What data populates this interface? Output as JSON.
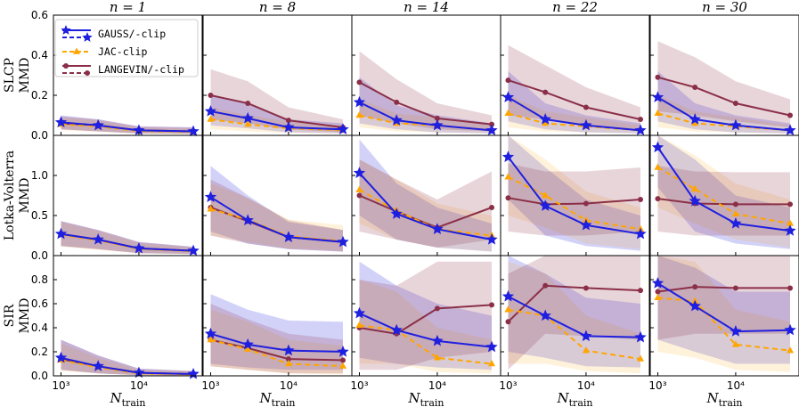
{
  "chart_data": {
    "type": "line",
    "xscale": "log",
    "x": [
      1000,
      3000,
      10000,
      50000
    ],
    "xticks": [
      1000,
      10000
    ],
    "xtick_labels": [
      "10³",
      "10⁴"
    ],
    "xlabel_main": "N",
    "xlabel_sub": "train",
    "columns": [
      {
        "label": "n = 1"
      },
      {
        "label": "n = 8"
      },
      {
        "label": "n = 14"
      },
      {
        "label": "n = 22"
      },
      {
        "label": "n = 30"
      }
    ],
    "rows": [
      {
        "label1": "SLCP",
        "label2": "MMD",
        "ylim": [
          0,
          0.6
        ],
        "yticks": [
          "0.0",
          "0.2",
          "0.4",
          "0.6"
        ],
        "ytick_values": [
          0,
          0.2,
          0.4,
          0.6
        ]
      },
      {
        "label1": "Lotka-Volterra",
        "label2": "MMD",
        "ylim": [
          0,
          1.5
        ],
        "yticks": [
          "0.0",
          "0.5",
          "1.0"
        ],
        "ytick_values": [
          0,
          0.5,
          1.0
        ]
      },
      {
        "label1": "SIR",
        "label2": "MMD",
        "ylim": [
          0,
          1.0
        ],
        "yticks": [
          "0.0",
          "0.2",
          "0.4",
          "0.6",
          "0.8"
        ],
        "ytick_values": [
          0,
          0.2,
          0.4,
          0.6,
          0.8
        ]
      }
    ],
    "legend": {
      "placement": "top-left of first panel",
      "entries": [
        {
          "name": "GAUSS/-clip",
          "color": "#1f1fe0",
          "marker": "star"
        },
        {
          "name": "JAC-clip",
          "color": "#ffa500",
          "marker": "triangle"
        },
        {
          "name": "LANGEVIN/-clip",
          "color": "#8b2f48",
          "marker": "circle"
        }
      ]
    },
    "series_colors": {
      "gauss": "#1f1fe0",
      "jac": "#ffa500",
      "lang": "#8b2f48"
    },
    "panels": [
      [
        {
          "gauss": {
            "values": [
              0.065,
              0.05,
              0.025,
              0.02
            ],
            "lo": [
              0.03,
              0.02,
              0.01,
              0.008
            ],
            "hi": [
              0.1,
              0.08,
              0.045,
              0.04
            ]
          },
          "jac": {
            "values": [
              0.055,
              0.045,
              0.022,
              0.018
            ],
            "lo": [
              0.025,
              0.018,
              0.008,
              0.006
            ],
            "hi": [
              0.09,
              0.075,
              0.04,
              0.035
            ]
          },
          "lang": {
            "values": [
              0.06,
              0.05,
              0.025,
              0.02
            ],
            "lo": [
              0.03,
              0.02,
              0.01,
              0.008
            ],
            "hi": [
              0.095,
              0.08,
              0.045,
              0.04
            ]
          }
        },
        {
          "gauss": {
            "values": [
              0.12,
              0.085,
              0.04,
              0.03
            ],
            "lo": [
              0.05,
              0.035,
              0.015,
              0.01
            ],
            "hi": [
              0.2,
              0.16,
              0.08,
              0.06
            ]
          },
          "jac": {
            "values": [
              0.08,
              0.055,
              0.035,
              0.025
            ],
            "lo": [
              0.03,
              0.02,
              0.012,
              0.01
            ],
            "hi": [
              0.14,
              0.1,
              0.07,
              0.05
            ]
          },
          "lang": {
            "values": [
              0.2,
              0.16,
              0.075,
              0.04
            ],
            "lo": [
              0.08,
              0.06,
              0.03,
              0.015
            ],
            "hi": [
              0.33,
              0.27,
              0.14,
              0.08
            ]
          }
        },
        {
          "gauss": {
            "values": [
              0.165,
              0.075,
              0.05,
              0.025
            ],
            "lo": [
              0.06,
              0.03,
              0.015,
              0.01
            ],
            "hi": [
              0.29,
              0.15,
              0.1,
              0.06
            ]
          },
          "jac": {
            "values": [
              0.1,
              0.06,
              0.05,
              0.025
            ],
            "lo": [
              0.04,
              0.02,
              0.015,
              0.01
            ],
            "hi": [
              0.18,
              0.11,
              0.09,
              0.05
            ]
          },
          "lang": {
            "values": [
              0.265,
              0.165,
              0.085,
              0.055
            ],
            "lo": [
              0.1,
              0.06,
              0.03,
              0.02
            ],
            "hi": [
              0.42,
              0.28,
              0.16,
              0.1
            ]
          }
        },
        {
          "gauss": {
            "values": [
              0.19,
              0.08,
              0.05,
              0.025
            ],
            "lo": [
              0.07,
              0.03,
              0.015,
              0.01
            ],
            "hi": [
              0.32,
              0.16,
              0.1,
              0.06
            ]
          },
          "jac": {
            "values": [
              0.11,
              0.06,
              0.045,
              0.025
            ],
            "lo": [
              0.04,
              0.02,
              0.015,
              0.01
            ],
            "hi": [
              0.2,
              0.12,
              0.09,
              0.05
            ]
          },
          "lang": {
            "values": [
              0.275,
              0.215,
              0.14,
              0.08
            ],
            "lo": [
              0.1,
              0.08,
              0.05,
              0.03
            ],
            "hi": [
              0.45,
              0.35,
              0.24,
              0.14
            ]
          }
        },
        {
          "gauss": {
            "values": [
              0.19,
              0.08,
              0.05,
              0.025
            ],
            "lo": [
              0.07,
              0.03,
              0.015,
              0.01
            ],
            "hi": [
              0.32,
              0.16,
              0.1,
              0.06
            ]
          },
          "jac": {
            "values": [
              0.11,
              0.06,
              0.045,
              0.025
            ],
            "lo": [
              0.04,
              0.02,
              0.015,
              0.01
            ],
            "hi": [
              0.2,
              0.12,
              0.09,
              0.05
            ]
          },
          "lang": {
            "values": [
              0.29,
              0.24,
              0.16,
              0.1
            ],
            "lo": [
              0.12,
              0.1,
              0.07,
              0.04
            ],
            "hi": [
              0.47,
              0.39,
              0.27,
              0.18
            ]
          }
        }
      ],
      [
        {
          "gauss": {
            "values": [
              0.27,
              0.2,
              0.09,
              0.06
            ],
            "lo": [
              0.12,
              0.08,
              0.03,
              0.02
            ],
            "hi": [
              0.43,
              0.32,
              0.17,
              0.11
            ]
          },
          "jac": {
            "values": [
              0.26,
              0.19,
              0.085,
              0.055
            ],
            "lo": [
              0.11,
              0.07,
              0.03,
              0.02
            ],
            "hi": [
              0.42,
              0.31,
              0.16,
              0.1
            ]
          },
          "lang": {
            "values": [
              0.27,
              0.2,
              0.09,
              0.06
            ],
            "lo": [
              0.12,
              0.08,
              0.03,
              0.02
            ],
            "hi": [
              0.43,
              0.32,
              0.17,
              0.11
            ]
          }
        },
        {
          "gauss": {
            "values": [
              0.73,
              0.44,
              0.23,
              0.17
            ],
            "lo": [
              0.3,
              0.15,
              0.08,
              0.05
            ],
            "hi": [
              1.12,
              0.75,
              0.42,
              0.32
            ]
          },
          "jac": {
            "values": [
              0.58,
              0.45,
              0.24,
              0.18
            ],
            "lo": [
              0.25,
              0.17,
              0.09,
              0.06
            ],
            "hi": [
              0.9,
              0.72,
              0.45,
              0.38
            ]
          },
          "lang": {
            "values": [
              0.6,
              0.43,
              0.23,
              0.17
            ],
            "lo": [
              0.25,
              0.15,
              0.08,
              0.05
            ],
            "hi": [
              0.95,
              0.72,
              0.44,
              0.32
            ]
          }
        },
        {
          "gauss": {
            "values": [
              1.03,
              0.52,
              0.33,
              0.2
            ],
            "lo": [
              0.5,
              0.2,
              0.1,
              0.05
            ],
            "hi": [
              1.45,
              0.9,
              0.6,
              0.4
            ]
          },
          "jac": {
            "values": [
              0.82,
              0.56,
              0.33,
              0.25
            ],
            "lo": [
              0.4,
              0.2,
              0.1,
              0.05
            ],
            "hi": [
              1.2,
              0.95,
              0.65,
              0.5
            ]
          },
          "lang": {
            "values": [
              0.75,
              0.55,
              0.35,
              0.6
            ],
            "lo": [
              0.3,
              0.2,
              0.1,
              0.2
            ],
            "hi": [
              1.2,
              0.95,
              0.7,
              1.05
            ]
          }
        },
        {
          "gauss": {
            "values": [
              1.23,
              0.62,
              0.38,
              0.27
            ],
            "lo": [
              0.7,
              0.25,
              0.12,
              0.06
            ],
            "hi": [
              1.5,
              1.1,
              0.7,
              0.5
            ]
          },
          "jac": {
            "values": [
              0.98,
              0.75,
              0.44,
              0.33
            ],
            "lo": [
              0.5,
              0.35,
              0.15,
              0.08
            ],
            "hi": [
              1.5,
              1.2,
              0.8,
              0.6
            ]
          },
          "lang": {
            "values": [
              0.72,
              0.64,
              0.65,
              0.7
            ],
            "lo": [
              0.3,
              0.25,
              0.25,
              0.3
            ],
            "hi": [
              1.15,
              1.05,
              1.05,
              1.1
            ]
          }
        },
        {
          "gauss": {
            "values": [
              1.35,
              0.68,
              0.4,
              0.31
            ],
            "lo": [
              0.85,
              0.3,
              0.15,
              0.08
            ],
            "hi": [
              1.5,
              1.2,
              0.75,
              0.6
            ]
          },
          "jac": {
            "values": [
              1.1,
              0.83,
              0.52,
              0.4
            ],
            "lo": [
              0.6,
              0.4,
              0.2,
              0.1
            ],
            "hi": [
              1.5,
              1.25,
              0.9,
              0.7
            ]
          },
          "lang": {
            "values": [
              0.71,
              0.65,
              0.64,
              0.64
            ],
            "lo": [
              0.3,
              0.25,
              0.25,
              0.25
            ],
            "hi": [
              1.12,
              1.05,
              1.04,
              1.04
            ]
          }
        }
      ],
      [
        {
          "gauss": {
            "values": [
              0.15,
              0.08,
              0.025,
              0.015
            ],
            "lo": [
              0.05,
              0.02,
              0.005,
              0.003
            ],
            "hi": [
              0.3,
              0.17,
              0.06,
              0.04
            ]
          },
          "jac": {
            "values": [
              0.13,
              0.07,
              0.02,
              0.012
            ],
            "lo": [
              0.04,
              0.02,
              0.005,
              0.003
            ],
            "hi": [
              0.27,
              0.15,
              0.05,
              0.035
            ]
          },
          "lang": {
            "values": [
              0.14,
              0.08,
              0.025,
              0.015
            ],
            "lo": [
              0.05,
              0.02,
              0.005,
              0.003
            ],
            "hi": [
              0.3,
              0.17,
              0.06,
              0.04
            ]
          }
        },
        {
          "gauss": {
            "values": [
              0.35,
              0.26,
              0.21,
              0.2
            ],
            "lo": [
              0.1,
              0.07,
              0.05,
              0.05
            ],
            "hi": [
              0.68,
              0.55,
              0.46,
              0.45
            ]
          },
          "jac": {
            "values": [
              0.3,
              0.22,
              0.1,
              0.08
            ],
            "lo": [
              0.08,
              0.05,
              0.02,
              0.01
            ],
            "hi": [
              0.55,
              0.45,
              0.3,
              0.25
            ]
          },
          "lang": {
            "values": [
              0.3,
              0.23,
              0.14,
              0.13
            ],
            "lo": [
              0.08,
              0.05,
              0.02,
              0.02
            ],
            "hi": [
              0.6,
              0.47,
              0.35,
              0.3
            ]
          }
        },
        {
          "gauss": {
            "values": [
              0.52,
              0.38,
              0.29,
              0.24
            ],
            "lo": [
              0.15,
              0.1,
              0.07,
              0.05
            ],
            "hi": [
              0.95,
              0.75,
              0.6,
              0.5
            ]
          },
          "jac": {
            "values": [
              0.42,
              0.38,
              0.15,
              0.1
            ],
            "lo": [
              0.1,
              0.1,
              0.03,
              0.02
            ],
            "hi": [
              0.8,
              0.7,
              0.4,
              0.3
            ]
          },
          "lang": {
            "values": [
              0.4,
              0.35,
              0.56,
              0.59
            ],
            "lo": [
              0.05,
              0.05,
              0.15,
              0.2
            ],
            "hi": [
              0.8,
              0.75,
              0.95,
              0.95
            ]
          }
        },
        {
          "gauss": {
            "values": [
              0.66,
              0.5,
              0.33,
              0.32
            ],
            "lo": [
              0.2,
              0.15,
              0.08,
              0.07
            ],
            "hi": [
              1.0,
              0.85,
              0.65,
              0.6
            ]
          },
          "jac": {
            "values": [
              0.55,
              0.5,
              0.21,
              0.14
            ],
            "lo": [
              0.1,
              0.1,
              0.04,
              0.02
            ],
            "hi": [
              0.95,
              0.85,
              0.5,
              0.35
            ]
          },
          "lang": {
            "values": [
              0.45,
              0.75,
              0.73,
              0.71
            ],
            "lo": [
              0.05,
              0.35,
              0.33,
              0.3
            ],
            "hi": [
              0.85,
              1.0,
              1.0,
              1.0
            ]
          }
        },
        {
          "gauss": {
            "values": [
              0.77,
              0.58,
              0.37,
              0.38
            ],
            "lo": [
              0.3,
              0.2,
              0.1,
              0.1
            ],
            "hi": [
              1.0,
              0.9,
              0.7,
              0.7
            ]
          },
          "jac": {
            "values": [
              0.65,
              0.62,
              0.26,
              0.21
            ],
            "lo": [
              0.2,
              0.15,
              0.05,
              0.03
            ],
            "hi": [
              1.0,
              0.95,
              0.55,
              0.45
            ]
          },
          "lang": {
            "values": [
              0.7,
              0.74,
              0.73,
              0.73
            ],
            "lo": [
              0.3,
              0.35,
              0.35,
              0.35
            ],
            "hi": [
              1.0,
              1.0,
              1.0,
              1.0
            ]
          }
        }
      ]
    ]
  }
}
